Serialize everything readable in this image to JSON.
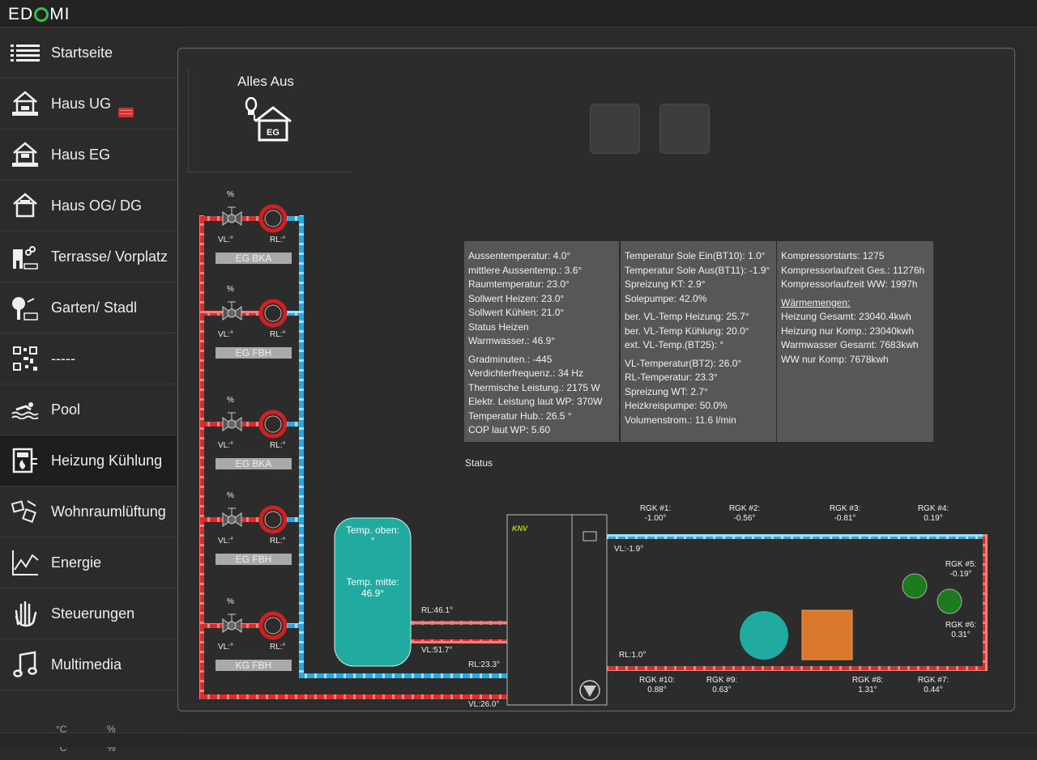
{
  "app": {
    "logo_left": "ED",
    "logo_right": "MI"
  },
  "sidebar": {
    "items": [
      {
        "label": "Startseite",
        "icon": "list-icon"
      },
      {
        "label": "Haus UG",
        "icon": "house-ug-icon"
      },
      {
        "label": "Haus EG",
        "icon": "house-eg-icon"
      },
      {
        "label": "Haus OG/ DG",
        "icon": "house-og-icon"
      },
      {
        "label": "Terrasse/ Vorplatz",
        "icon": "terrace-icon"
      },
      {
        "label": "Garten/ Stadl",
        "icon": "garden-icon"
      },
      {
        "label": "-----",
        "icon": "qr-code-icon"
      },
      {
        "label": "Pool",
        "icon": "swimmer-icon"
      },
      {
        "label": "Heizung Kühlung",
        "icon": "heating-icon"
      },
      {
        "label": "Wohnraumlüftung",
        "icon": "ventilation-icon"
      },
      {
        "label": "Energie",
        "icon": "energy-chart-icon"
      },
      {
        "label": "Steuerungen",
        "icon": "hand-icon"
      },
      {
        "label": "Multimedia",
        "icon": "music-note-icon"
      }
    ],
    "active_index": 8,
    "bottom": {
      "unit1": "°C",
      "unit2": "%",
      "unit3": "°C",
      "unit4": "%"
    }
  },
  "panel": {
    "alles_aus": {
      "title": "Alles Aus",
      "house_label": "EG"
    },
    "info_col1": [
      "Aussentemperatur: 4.0°",
      "mittlere Aussentemp.: 3.6°",
      "Raumtemperatur: 23.0°",
      "Sollwert Heizen: 23.0°",
      "Sollwert Kühlen: 21.0°",
      "Status Heizen",
      "Warmwasser.: 46.9°",
      "",
      "Gradminuten.: -445",
      "Verdichterfrequenz.: 34 Hz",
      "Thermische Leistung.: 2175 W",
      "Elektr. Leistung laut WP: 370W",
      "Temperatur Hub.: 26.5 °",
      "COP laut WP: 5.60"
    ],
    "info_col2": [
      "Temperatur Sole Ein(BT10): 1.0°",
      "Temperatur Sole Aus(BT11): -1.9°",
      "Spreizung KT: 2.9°",
      "Solepumpe: 42.0%",
      "",
      "ber. VL-Temp Heizung: 25.7°",
      "ber. VL-Temp Kühlung: 20.0°",
      "ext. VL-Temp.(BT25): °",
      "",
      "VL-Temperatur(BT2): 26.0°",
      "RL-Temperatur: 23.3°",
      "Spreizung WT: 2.7°",
      "Heizkreispumpe: 50.0%",
      "Volumenstrom.: 11.6 l/min"
    ],
    "info_col3": [
      "Kompressorstarts: 1275",
      "Kompressorlaufzeit Ges.: 11276h",
      "Kompressorlaufzeit WW: 1997h",
      "",
      "Wärmemengen:",
      "Heizung Gesamt: 23040.4kwh",
      "Heizung nur Komp.: 23040kwh",
      "Warmwasser Gesamt: 7683kwh",
      "WW nur Komp: 7678kwh"
    ],
    "status_label": "Status",
    "circuits": [
      {
        "name": "EG BKA",
        "percent": "%",
        "vl": "VL:°",
        "rl": "RL:°"
      },
      {
        "name": "EG FBH",
        "percent": "%",
        "vl": "VL:°",
        "rl": "RL:°"
      },
      {
        "name": "EG BKA",
        "percent": "%",
        "vl": "VL:°",
        "rl": "RL:°"
      },
      {
        "name": "EG FBH",
        "percent": "%",
        "vl": "VL:°",
        "rl": "RL:°"
      },
      {
        "name": "KG FBH",
        "percent": "%",
        "vl": "VL:°",
        "rl": "RL:°"
      }
    ],
    "tank": {
      "top_label": "Temp. oben:",
      "top_value": "°",
      "mid_label": "Temp. mitte:",
      "mid_value": "46.9°"
    },
    "pipes": {
      "rl_tank": "RL:46.1°",
      "vl_tank": "VL:51.7°",
      "rl_main": "RL:23.3°",
      "vl_main": "VL:26.0°",
      "vl_sole": "VL:-1.9°",
      "rl_sole": "RL:1.0°"
    },
    "heatpump_brand": "KNV",
    "rgk": [
      {
        "label": "RGK #1:",
        "value": "-1.00°"
      },
      {
        "label": "RGK #2:",
        "value": "-0.56°"
      },
      {
        "label": "RGK #3:",
        "value": "-0.81°"
      },
      {
        "label": "RGK #4:",
        "value": "0.19°"
      },
      {
        "label": "RGK #5:",
        "value": "-0.19°"
      },
      {
        "label": "RGK #6:",
        "value": "0.31°"
      },
      {
        "label": "RGK #7:",
        "value": "0.44°"
      },
      {
        "label": "RGK #8:",
        "value": "1.31°"
      },
      {
        "label": "RGK #9:",
        "value": "0.63°"
      },
      {
        "label": "RGK #10:",
        "value": "0.88°"
      }
    ],
    "colors": {
      "hot": "#e02a2a",
      "cold": "#29a8e0",
      "tank": "#20aaa0",
      "valve_ring": "#d02020",
      "indicator_green": "#1d7a1d",
      "orange": "#d9782a"
    }
  }
}
